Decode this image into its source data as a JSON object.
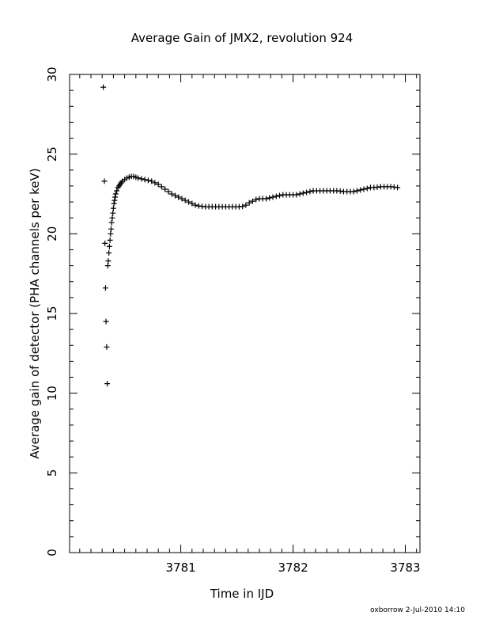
{
  "chart_data": {
    "type": "scatter",
    "title": "Average Gain of JMX2, revolution 924",
    "xlabel": "Time in IJD",
    "ylabel": "Average gain of detector (PHA channels per keV)",
    "xlim": [
      3780.01,
      3783.13
    ],
    "ylim": [
      0,
      30
    ],
    "xticks": [
      3781,
      3782,
      3783
    ],
    "yticks": [
      0,
      5,
      10,
      15,
      20,
      25,
      30
    ],
    "grid": false,
    "marker": "+",
    "series": [
      {
        "x": [
          3780.31,
          3780.32,
          3780.325,
          3780.33,
          3780.335,
          3780.34,
          3780.345,
          3780.35,
          3780.355,
          3780.36,
          3780.365,
          3780.37,
          3780.375,
          3780.38,
          3780.385,
          3780.39,
          3780.395,
          3780.4,
          3780.405,
          3780.41,
          3780.415,
          3780.42,
          3780.43,
          3780.44,
          3780.45,
          3780.46,
          3780.47,
          3780.48,
          3780.5,
          3780.52,
          3780.54,
          3780.56,
          3780.58,
          3780.6,
          3780.62,
          3780.65,
          3780.68,
          3780.71,
          3780.74,
          3780.77,
          3780.8,
          3780.83,
          3780.86,
          3780.89,
          3780.92,
          3780.95,
          3780.98,
          3781.01,
          3781.04,
          3781.07,
          3781.1,
          3781.13,
          3781.16,
          3781.19,
          3781.22,
          3781.25,
          3781.28,
          3781.31,
          3781.34,
          3781.37,
          3781.4,
          3781.43,
          3781.46,
          3781.49,
          3781.52,
          3781.55,
          3781.58,
          3781.61,
          3781.64,
          3781.67,
          3781.7,
          3781.73,
          3781.76,
          3781.79,
          3781.82,
          3781.85,
          3781.88,
          3781.91,
          3781.94,
          3781.97,
          3782.0,
          3782.03,
          3782.06,
          3782.09,
          3782.12,
          3782.15,
          3782.18,
          3782.21,
          3782.24,
          3782.27,
          3782.3,
          3782.33,
          3782.36,
          3782.39,
          3782.42,
          3782.45,
          3782.48,
          3782.51,
          3782.54,
          3782.57,
          3782.6,
          3782.63,
          3782.66,
          3782.69,
          3782.72,
          3782.75,
          3782.78,
          3782.81,
          3782.84,
          3782.87,
          3782.9,
          3782.93
        ],
        "y": [
          29.2,
          23.3,
          19.4,
          16.6,
          14.5,
          12.9,
          10.6,
          18.0,
          18.3,
          18.8,
          19.2,
          19.6,
          20.0,
          20.3,
          20.7,
          21.0,
          21.3,
          21.6,
          21.9,
          22.1,
          22.3,
          22.5,
          22.7,
          22.9,
          23.0,
          23.1,
          23.2,
          23.3,
          23.4,
          23.5,
          23.55,
          23.6,
          23.6,
          23.55,
          23.5,
          23.45,
          23.4,
          23.35,
          23.3,
          23.2,
          23.1,
          22.95,
          22.8,
          22.65,
          22.5,
          22.4,
          22.3,
          22.2,
          22.1,
          22.0,
          21.9,
          21.8,
          21.75,
          21.72,
          21.7,
          21.7,
          21.7,
          21.7,
          21.7,
          21.7,
          21.7,
          21.7,
          21.7,
          21.7,
          21.7,
          21.72,
          21.8,
          21.95,
          22.05,
          22.15,
          22.2,
          22.2,
          22.2,
          22.25,
          22.3,
          22.35,
          22.4,
          22.45,
          22.45,
          22.45,
          22.45,
          22.45,
          22.5,
          22.55,
          22.6,
          22.65,
          22.7,
          22.7,
          22.7,
          22.7,
          22.7,
          22.7,
          22.7,
          22.7,
          22.68,
          22.65,
          22.65,
          22.65,
          22.65,
          22.7,
          22.75,
          22.8,
          22.85,
          22.9,
          22.9,
          22.92,
          22.95,
          22.95,
          22.95,
          22.95,
          22.93,
          22.9
        ]
      }
    ]
  },
  "footer": {
    "text": "oxborrow   2-Jul-2010 14:10"
  }
}
